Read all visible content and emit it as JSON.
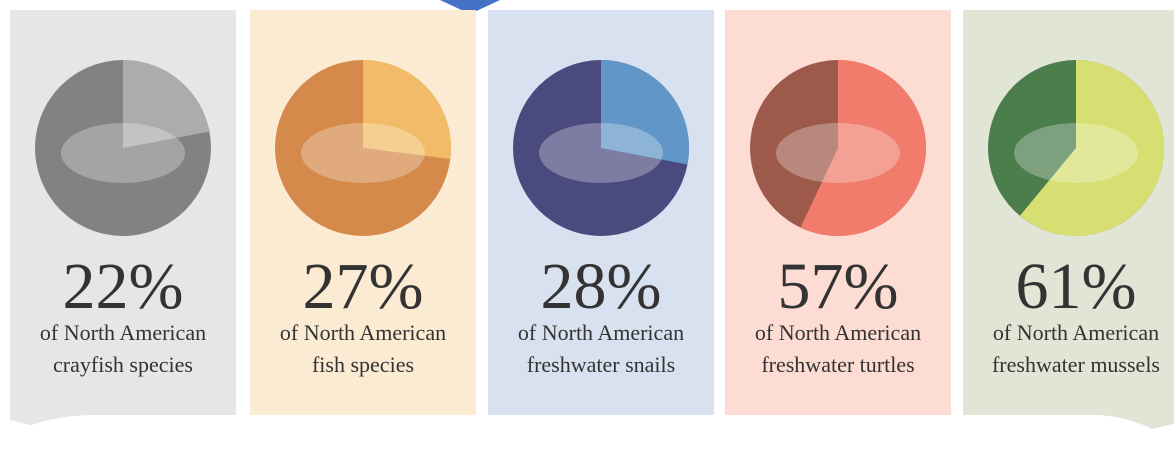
{
  "chart_data": [
    {
      "type": "pie",
      "values": [
        22
      ],
      "value_labels": [
        "22%"
      ],
      "subtitle": "of North American",
      "label": "crayfish species",
      "colors": [
        "#acacac",
        "#828282"
      ],
      "background": "#e6e6e8"
    },
    {
      "type": "pie",
      "values": [
        27
      ],
      "value_labels": [
        "27%"
      ],
      "subtitle": "of North American",
      "label": "fish species",
      "colors": [
        "#f1bb68",
        "#d58a4c"
      ],
      "background": "#fcebd3"
    },
    {
      "type": "pie",
      "values": [
        28
      ],
      "value_labels": [
        "28%"
      ],
      "subtitle": "of North American",
      "label": "freshwater snails",
      "colors": [
        "#6196c8",
        "#4b4a7f"
      ],
      "background": "#d8e1ef"
    },
    {
      "type": "pie",
      "values": [
        57
      ],
      "value_labels": [
        "57%"
      ],
      "subtitle": "of North American",
      "label": "freshwater turtles",
      "colors": [
        "#f27c6c",
        "#9d5a4a"
      ],
      "background": "#fcdcd3"
    },
    {
      "type": "pie",
      "values": [
        61
      ],
      "value_labels": [
        "61%"
      ],
      "subtitle": "of North American",
      "label": "freshwater mussels",
      "colors": [
        "#d7df72",
        "#4b7d4d"
      ],
      "background": "#e0e5d5"
    }
  ]
}
